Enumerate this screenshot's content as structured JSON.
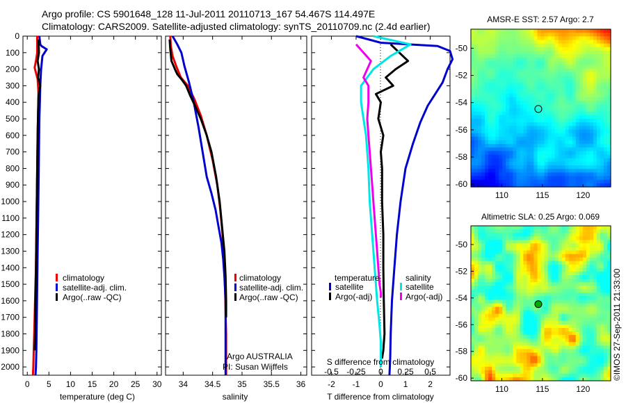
{
  "header": {
    "line1": "Argo profile: CS 5901648_128 11-Jul-2011 20110713_167 54.467S 114.497E",
    "line2": "Climatology: CARS2009. Satellite-adjusted climatology: synTS_20110709.nc (2.4d earlier)"
  },
  "colors": {
    "climatology": "#ee0000",
    "satellite": "#0000cc",
    "argo": "#000000",
    "s_satellite": "#00e5e5",
    "s_argo": "#ee00ee"
  },
  "chart_data": [
    {
      "type": "line",
      "xlabel": "temperature (deg C)",
      "ylim": [
        2050,
        0
      ],
      "xlim": [
        -1,
        31
      ],
      "xticks": [
        0,
        5,
        10,
        15,
        20,
        25,
        30
      ],
      "yticks": [
        0,
        100,
        200,
        300,
        400,
        500,
        600,
        700,
        800,
        900,
        1000,
        1100,
        1200,
        1300,
        1400,
        1500,
        1600,
        1700,
        1800,
        1900,
        2000
      ],
      "legend": [
        "climatology",
        "satellite-adj. clim.",
        "Argo(..raw -QC)"
      ],
      "series": [
        {
          "name": "climatology",
          "color": "#ee0000",
          "x": [
            2.3,
            2.3,
            2.0,
            1.7,
            2.4,
            2.6,
            2.5,
            2.4,
            2.3,
            2.2,
            2.1,
            2.0,
            1.9,
            1.8,
            1.7,
            1.6,
            1.5,
            1.4,
            1.3
          ],
          "y": [
            0,
            100,
            150,
            190,
            260,
            350,
            450,
            600,
            800,
            1000,
            1200,
            1400,
            1500,
            1600,
            1700,
            1800,
            1900,
            2000,
            2050
          ]
        },
        {
          "name": "satellite-adj. clim.",
          "color": "#0000cc",
          "x": [
            2.8,
            3.0,
            3.3,
            4.5,
            3.5,
            3.2,
            3.0,
            2.9,
            2.8,
            2.7,
            2.6,
            2.5,
            2.4,
            2.3,
            2.2,
            2.1,
            2.0,
            1.9
          ],
          "y": [
            0,
            50,
            60,
            80,
            120,
            200,
            300,
            400,
            500,
            700,
            900,
            1100,
            1300,
            1500,
            1700,
            1900,
            2000,
            2050
          ]
        },
        {
          "name": "Argo(..raw -QC)",
          "color": "#000000",
          "x": [
            2.6,
            2.7,
            2.4,
            2.7,
            2.5,
            3.0,
            2.6,
            2.5,
            2.4,
            2.3,
            2.2,
            2.1,
            2.0,
            1.9,
            1.8,
            1.7
          ],
          "y": [
            20,
            100,
            150,
            200,
            250,
            300,
            350,
            450,
            600,
            800,
            1000,
            1200,
            1400,
            1600,
            1800,
            1900
          ]
        }
      ]
    },
    {
      "type": "line",
      "xlabel": "salinity",
      "ylim": [
        2050,
        0
      ],
      "xlim": [
        33.7,
        36.1
      ],
      "xticks": [
        34,
        34.5,
        35,
        35.5,
        36
      ],
      "legend": [
        "climatology",
        "satellite-adj. clim.",
        "Argo(..raw -QC)"
      ],
      "annotation": [
        "Argo AUSTRALIA",
        "PI: Susan Wijffels"
      ],
      "series": [
        {
          "name": "climatology",
          "color": "#ee0000",
          "x": [
            33.78,
            33.79,
            33.82,
            33.88,
            33.96,
            34.08,
            34.19,
            34.3,
            34.4,
            34.5,
            34.58,
            34.63,
            34.67,
            34.69,
            34.71,
            34.72,
            34.73,
            34.73,
            34.73,
            34.73
          ],
          "y": [
            0,
            60,
            120,
            180,
            250,
            300,
            380,
            480,
            600,
            750,
            900,
            1050,
            1200,
            1350,
            1500,
            1650,
            1800,
            1900,
            2000,
            2050
          ]
        },
        {
          "name": "satellite-adj. clim.",
          "color": "#0000cc",
          "x": [
            33.82,
            33.9,
            33.97,
            34.02,
            34.1,
            34.18,
            34.26,
            34.33,
            34.4,
            34.48,
            34.55,
            34.6,
            34.65,
            34.68,
            34.7,
            34.72,
            34.72,
            34.72,
            34.72,
            34.72
          ],
          "y": [
            0,
            50,
            100,
            180,
            280,
            400,
            550,
            700,
            850,
            950,
            1050,
            1150,
            1250,
            1350,
            1450,
            1600,
            1750,
            1900,
            2000,
            2050
          ]
        },
        {
          "name": "Argo(..raw -QC)",
          "color": "#000000",
          "x": [
            33.77,
            33.78,
            33.8,
            33.86,
            33.9,
            33.97,
            34.05,
            34.12,
            34.2,
            34.3,
            34.4,
            34.48,
            34.56,
            34.62,
            34.66,
            34.7,
            34.72,
            34.73,
            34.73
          ],
          "y": [
            20,
            80,
            150,
            200,
            230,
            260,
            300,
            360,
            420,
            500,
            600,
            700,
            850,
            1000,
            1150,
            1300,
            1450,
            1600,
            1700
          ]
        }
      ]
    },
    {
      "type": "line",
      "xlabel": "T difference from climatology",
      "xlabel_top": "S difference from climatology",
      "xlim": [
        -2.8,
        2.8
      ],
      "xticks": [
        -2,
        -1,
        0,
        1,
        2
      ],
      "xticks_top_labels": [
        "-0.5",
        "-0.25",
        "0",
        "0.25",
        "0.5"
      ],
      "legend_temperature_title": "temperature",
      "legend_salinity_title": "salinity",
      "legend_temperature": [
        "satellite",
        "Argo(-adj)"
      ],
      "legend_salinity": [
        "satellite",
        "Argo(-adj)"
      ],
      "series": [
        {
          "name": "satellite",
          "color": "#0000cc",
          "x": [
            -1.0,
            0.0,
            2.3,
            2.8,
            2.9,
            2.7,
            2.5,
            2.2,
            1.9,
            1.6,
            1.3,
            1.0,
            0.8,
            0.65,
            0.55,
            0.45,
            0.4,
            0.38,
            0.35
          ],
          "y": [
            0,
            40,
            60,
            90,
            140,
            200,
            280,
            350,
            420,
            520,
            650,
            800,
            1000,
            1200,
            1400,
            1600,
            1800,
            1950,
            2050
          ]
        },
        {
          "name": "Argo(-adj)",
          "color": "#000000",
          "x": [
            0.4,
            1.1,
            0.6,
            0.2,
            0.5,
            -0.2,
            0.0,
            -0.1,
            0.1,
            0.0,
            0.05,
            0.05,
            0.1,
            0.1,
            0.12,
            0.15,
            0.1,
            0.05
          ],
          "y": [
            50,
            150,
            200,
            250,
            300,
            350,
            400,
            500,
            600,
            700,
            800,
            1000,
            1200,
            1400,
            1600,
            1800,
            1900,
            1950
          ]
        },
        {
          "name": "s-satellite",
          "color": "#00e5e5",
          "x": [
            -0.3,
            1.2,
            0.4,
            -0.3,
            -0.8,
            -0.8,
            -0.7,
            -0.6,
            -0.5,
            -0.45,
            -0.35,
            -0.25,
            -0.15,
            -0.05,
            0.0,
            0.0,
            0.0
          ],
          "y": [
            0,
            50,
            120,
            200,
            300,
            400,
            500,
            600,
            800,
            1000,
            1200,
            1400,
            1600,
            1750,
            1850,
            1950,
            2000
          ]
        },
        {
          "name": "s-argo",
          "color": "#ee00ee",
          "x": [
            -1.0,
            -0.4,
            -0.7,
            -0.5,
            -0.5,
            -0.55,
            -0.5,
            -0.45,
            -0.4,
            -0.35,
            -0.3,
            -0.25,
            -0.2,
            -0.15,
            -0.1,
            -0.05,
            0.0,
            0.0
          ],
          "y": [
            50,
            150,
            250,
            300,
            400,
            500,
            600,
            700,
            800,
            900,
            1000,
            1100,
            1200,
            1300,
            1400,
            1500,
            1550,
            1580
          ]
        }
      ]
    },
    {
      "type": "heatmap",
      "title": "AMSR-E SST: 2.57 Argo: 2.7",
      "xticks": [
        110,
        115,
        120
      ],
      "yticks": [
        -50,
        -52,
        -54,
        -56,
        -58,
        -60
      ],
      "xlim": [
        106.2,
        123.4
      ],
      "ylim": [
        -60.2,
        -48.6
      ],
      "marker": {
        "lon": 114.497,
        "lat": -54.467
      }
    },
    {
      "type": "heatmap",
      "title": "Altimetric SLA: 0.25 Argo: 0.069",
      "xticks": [
        110,
        115,
        120
      ],
      "yticks": [
        -50,
        -52,
        -54,
        -56,
        -58,
        -60
      ],
      "xlim": [
        106.2,
        123.4
      ],
      "ylim": [
        -60.2,
        -48.6
      ],
      "marker": {
        "lon": 114.497,
        "lat": -54.467
      }
    }
  ],
  "footer_stamp": "©IMOS 27-Sep-2011 21:33:00"
}
